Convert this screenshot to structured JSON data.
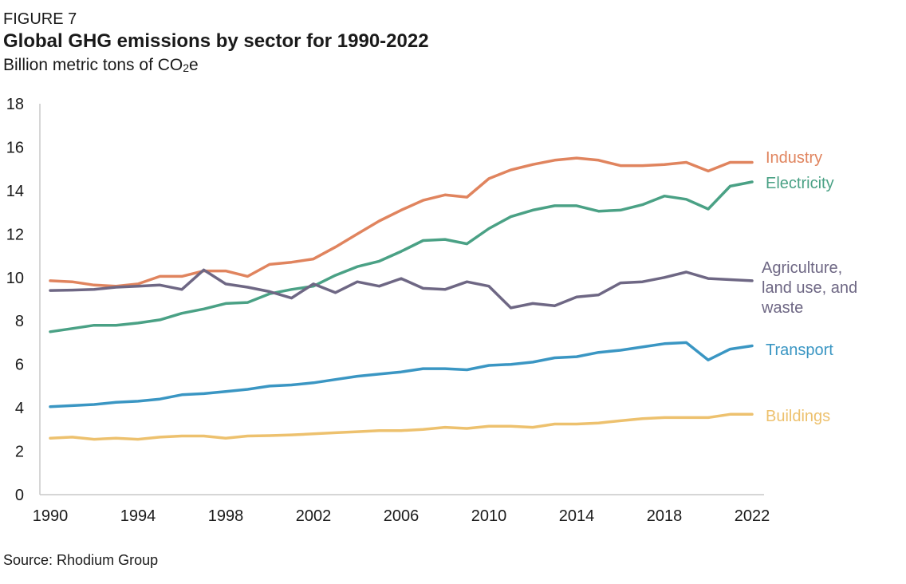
{
  "header": {
    "figure_label": "FIGURE 7",
    "title": "Global GHG emissions by sector for 1990-2022",
    "subtitle_prefix": "Billion metric tons of CO",
    "subtitle_sub": "2",
    "subtitle_suffix": "e"
  },
  "source": "Source: Rhodium Group",
  "chart_data": {
    "type": "line",
    "title": "Global GHG emissions by sector for 1990-2022",
    "ylabel": "Billion metric tons of CO2e",
    "xlim": [
      1990,
      2022
    ],
    "ylim": [
      0,
      18
    ],
    "x_ticks": [
      1990,
      1994,
      1998,
      2002,
      2006,
      2010,
      2014,
      2018,
      2022
    ],
    "y_ticks": [
      0,
      2,
      4,
      6,
      8,
      10,
      12,
      14,
      16,
      18
    ],
    "grid": false,
    "legend": "end-of-line labels",
    "x": [
      1990,
      1991,
      1992,
      1993,
      1994,
      1995,
      1996,
      1997,
      1998,
      1999,
      2000,
      2001,
      2002,
      2003,
      2004,
      2005,
      2006,
      2007,
      2008,
      2009,
      2010,
      2011,
      2012,
      2013,
      2014,
      2015,
      2016,
      2017,
      2018,
      2019,
      2020,
      2021,
      2022
    ],
    "series": [
      {
        "name": "Industry",
        "color": "#e0845e",
        "label_lines": [
          "Industry"
        ],
        "values": [
          9.85,
          9.8,
          9.65,
          9.6,
          9.7,
          10.05,
          10.05,
          10.3,
          10.3,
          10.05,
          10.6,
          10.7,
          10.85,
          11.4,
          12.0,
          12.6,
          13.1,
          13.55,
          13.8,
          13.7,
          14.55,
          14.95,
          15.2,
          15.4,
          15.5,
          15.4,
          15.15,
          15.15,
          15.2,
          15.3,
          14.9,
          15.3,
          15.3
        ]
      },
      {
        "name": "Electricity",
        "color": "#4aa185",
        "label_lines": [
          "Electricity"
        ],
        "values": [
          7.5,
          7.65,
          7.8,
          7.8,
          7.9,
          8.05,
          8.35,
          8.55,
          8.8,
          8.85,
          9.25,
          9.45,
          9.6,
          10.1,
          10.5,
          10.75,
          11.2,
          11.7,
          11.75,
          11.55,
          12.25,
          12.8,
          13.1,
          13.3,
          13.3,
          13.05,
          13.1,
          13.35,
          13.75,
          13.6,
          13.15,
          14.2,
          14.4
        ]
      },
      {
        "name": "Agriculture, land use, and waste",
        "color": "#6e6784",
        "label_lines": [
          "Agriculture,",
          "land use, and",
          "waste"
        ],
        "values": [
          9.4,
          9.42,
          9.45,
          9.55,
          9.6,
          9.65,
          9.45,
          10.35,
          9.7,
          9.55,
          9.35,
          9.05,
          9.7,
          9.3,
          9.8,
          9.6,
          9.95,
          9.5,
          9.45,
          9.8,
          9.6,
          8.6,
          8.8,
          8.7,
          9.1,
          9.2,
          9.75,
          9.8,
          10.0,
          10.25,
          9.95,
          9.9,
          9.85
        ]
      },
      {
        "name": "Transport",
        "color": "#3a96c3",
        "label_lines": [
          "Transport"
        ],
        "values": [
          4.05,
          4.1,
          4.15,
          4.25,
          4.3,
          4.4,
          4.6,
          4.65,
          4.75,
          4.85,
          5.0,
          5.05,
          5.15,
          5.3,
          5.45,
          5.55,
          5.65,
          5.8,
          5.8,
          5.75,
          5.95,
          6.0,
          6.1,
          6.3,
          6.35,
          6.55,
          6.65,
          6.8,
          6.95,
          7.0,
          6.2,
          6.7,
          6.85
        ]
      },
      {
        "name": "Buildings",
        "color": "#edc16e",
        "label_lines": [
          "Buildings"
        ],
        "values": [
          2.6,
          2.65,
          2.55,
          2.6,
          2.55,
          2.65,
          2.7,
          2.7,
          2.6,
          2.7,
          2.72,
          2.75,
          2.8,
          2.85,
          2.9,
          2.95,
          2.95,
          3.0,
          3.1,
          3.05,
          3.15,
          3.15,
          3.1,
          3.25,
          3.25,
          3.3,
          3.4,
          3.5,
          3.55,
          3.55,
          3.55,
          3.7,
          3.7
        ]
      }
    ]
  }
}
